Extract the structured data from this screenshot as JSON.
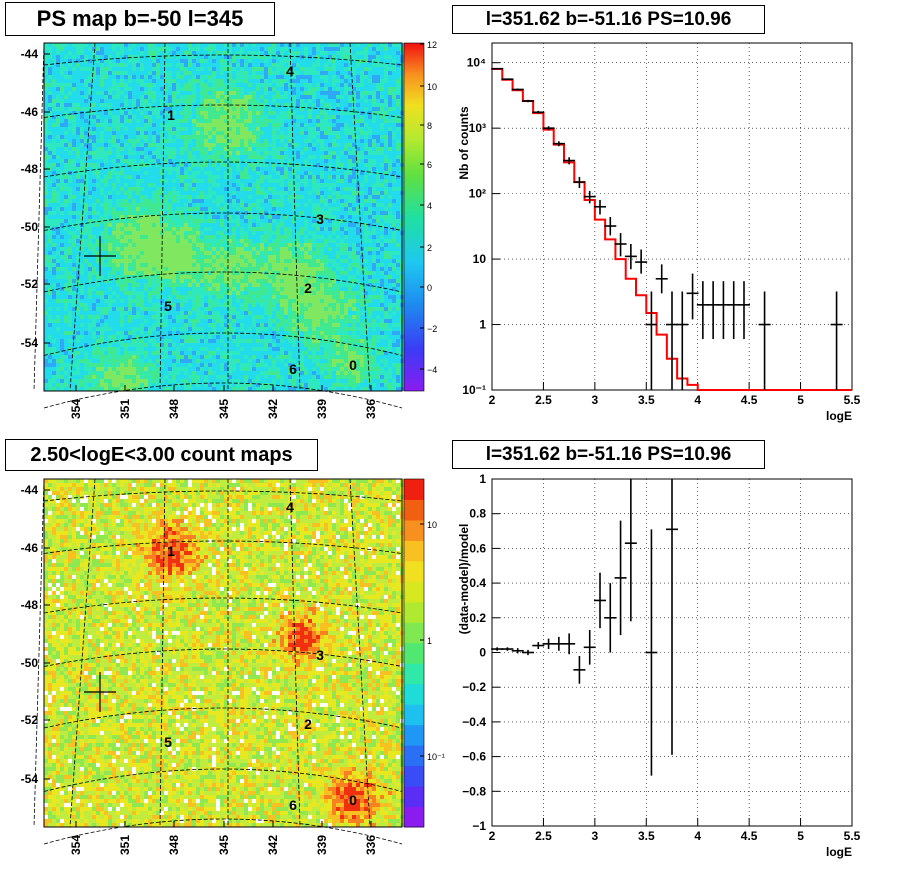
{
  "chart_data": [
    {
      "type": "heatmap",
      "title": "PS map b=-50 l=345",
      "y_ticks": [
        "-44",
        "-46",
        "-48",
        "-50",
        "-52",
        "-54"
      ],
      "x_ticks": [
        "354",
        "351",
        "348",
        "345",
        "342",
        "339",
        "336"
      ],
      "colorbar_ticks": [
        "12",
        "10",
        "8",
        "6",
        "4",
        "2",
        "0",
        "−2",
        "−4"
      ],
      "zlim": [
        -5,
        12
      ],
      "grid": "galactic",
      "source_labels": [
        "4",
        "1",
        "3",
        "2",
        "5",
        "6",
        "0"
      ]
    },
    {
      "type": "line",
      "title": "l=351.62 b=-51.16 PS=10.96",
      "xlabel": "logE",
      "ylabel": "Nb of counts",
      "xlim": [
        2,
        5.5
      ],
      "ylim": [
        0.1,
        20000
      ],
      "log_y": true,
      "grid": true,
      "x_ticks": [
        "2",
        "2.5",
        "3",
        "3.5",
        "4",
        "4.5",
        "5",
        "5.5"
      ],
      "y_ticks": [
        "10⁻¹",
        "1",
        "10",
        "10²",
        "10³",
        "10⁴"
      ],
      "series": [
        {
          "type": "step",
          "color": "#ff0000",
          "x_edges": [
            2.0,
            2.1,
            2.2,
            2.3,
            2.4,
            2.5,
            2.6,
            2.7,
            2.8,
            2.9,
            3.0,
            3.1,
            3.2,
            3.3,
            3.4,
            3.5,
            3.6,
            3.7,
            3.8,
            3.9,
            4.0,
            5.5
          ],
          "values": [
            8000,
            5500,
            3800,
            2600,
            1700,
            950,
            560,
            300,
            150,
            80,
            40,
            20,
            10,
            5,
            2.8,
            1.5,
            0.7,
            0.3,
            0.15,
            0.12,
            0.1
          ]
        },
        {
          "type": "errorbar",
          "color": "#000000",
          "x": [
            2.05,
            2.15,
            2.25,
            2.35,
            2.45,
            2.55,
            2.65,
            2.75,
            2.85,
            2.95,
            3.05,
            3.15,
            3.25,
            3.35,
            3.45,
            3.55,
            3.65,
            3.75,
            3.85,
            3.95,
            4.05,
            4.15,
            4.25,
            4.35,
            4.45,
            4.65,
            5.35
          ],
          "y": [
            8100,
            5600,
            3900,
            2600,
            1750,
            1000,
            580,
            320,
            150,
            90,
            63,
            32,
            17,
            11,
            9,
            1,
            5,
            1,
            1,
            3,
            2,
            2,
            2,
            2,
            2,
            1,
            1
          ],
          "y_low": [
            7920,
            5450,
            3770,
            2490,
            1660,
            930,
            530,
            280,
            122,
            71,
            48,
            23,
            11,
            7,
            6,
            0.1,
            3,
            0.1,
            0.1,
            1.2,
            0.6,
            0.6,
            0.6,
            0.6,
            0.6,
            0.1,
            0.1
          ],
          "y_high": [
            8280,
            5750,
            4030,
            2710,
            1840,
            1070,
            630,
            360,
            180,
            110,
            80,
            44,
            25,
            17,
            14,
            3.2,
            8.3,
            3.2,
            3.2,
            6,
            4.6,
            4.6,
            4.6,
            4.6,
            4.6,
            3.2,
            3.2
          ]
        }
      ]
    },
    {
      "type": "heatmap",
      "title": "2.50<logE<3.00 count maps",
      "y_ticks": [
        "-44",
        "-46",
        "-48",
        "-50",
        "-52",
        "-54"
      ],
      "x_ticks": [
        "354",
        "351",
        "348",
        "345",
        "342",
        "339",
        "336"
      ],
      "colorbar_ticks": [
        "10",
        "1",
        "10⁻¹"
      ],
      "zscale": "log",
      "grid": "galactic",
      "source_labels": [
        "4",
        "1",
        "3",
        "2",
        "5",
        "6",
        "0"
      ]
    },
    {
      "type": "scatter",
      "title": "l=351.62 b=-51.16 PS=10.96",
      "xlabel": "logE",
      "ylabel": "(data-model)/model",
      "xlim": [
        2,
        5.5
      ],
      "ylim": [
        -1,
        1
      ],
      "grid": true,
      "x_ticks": [
        "2",
        "2.5",
        "3",
        "3.5",
        "4",
        "4.5",
        "5",
        "5.5"
      ],
      "y_ticks": [
        "1",
        "0.8",
        "0.6",
        "0.4",
        "0.2",
        "0",
        "−0.2",
        "−0.4",
        "−0.6",
        "−0.8",
        "−1"
      ],
      "series": [
        {
          "type": "errorbar",
          "color": "#000000",
          "x": [
            2.05,
            2.15,
            2.25,
            2.35,
            2.45,
            2.55,
            2.65,
            2.75,
            2.85,
            2.95,
            3.05,
            3.15,
            3.25,
            3.35,
            3.55,
            3.75
          ],
          "y": [
            0.02,
            0.02,
            0.01,
            0.0,
            0.04,
            0.05,
            0.05,
            0.05,
            -0.1,
            0.03,
            0.3,
            0.2,
            0.43,
            0.63,
            0.0,
            0.71
          ],
          "err": [
            0.01,
            0.01,
            0.015,
            0.015,
            0.02,
            0.03,
            0.04,
            0.06,
            0.08,
            0.1,
            0.16,
            0.2,
            0.33,
            0.45,
            0.71,
            1.3
          ]
        }
      ]
    }
  ]
}
